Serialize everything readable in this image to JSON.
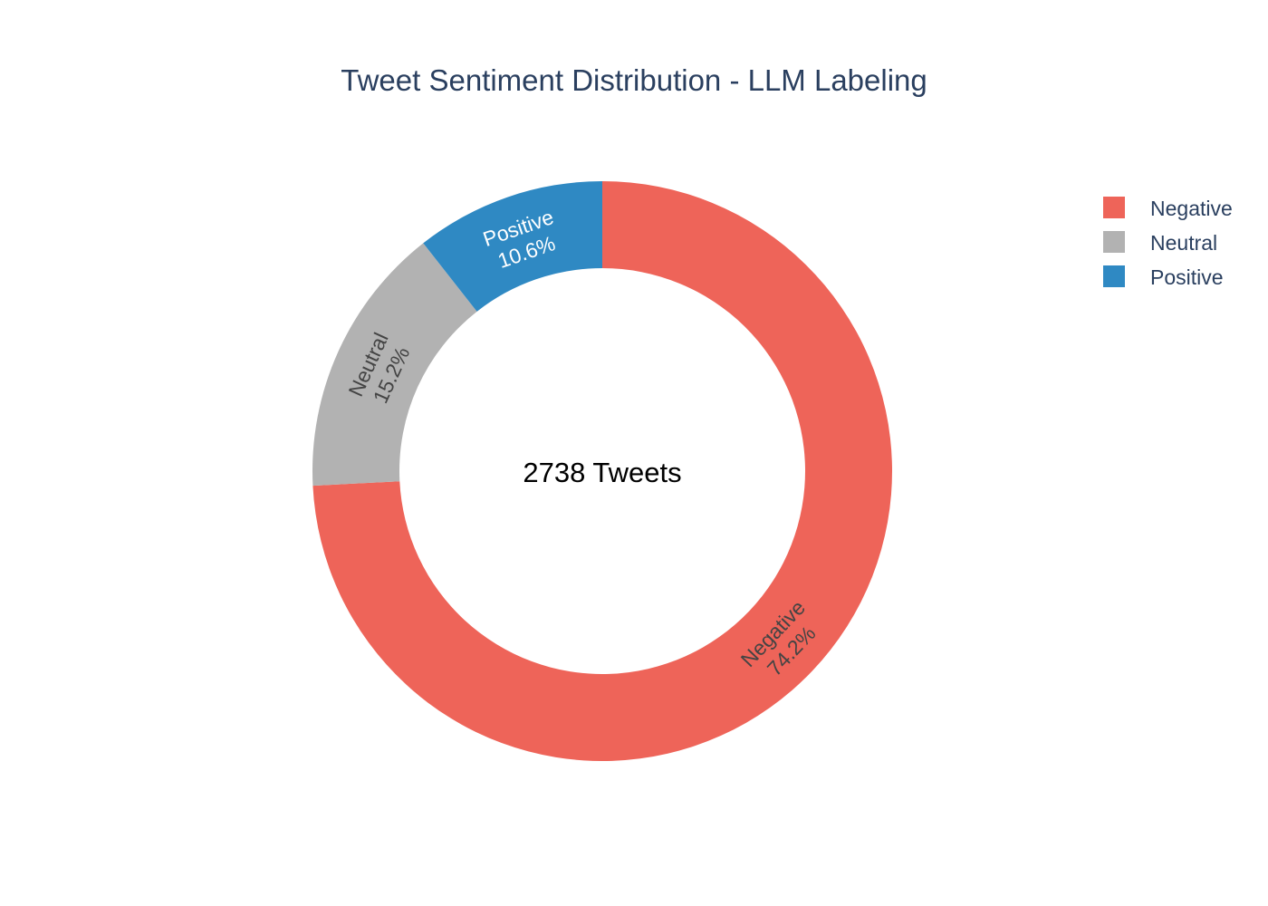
{
  "chart_data": {
    "type": "pie",
    "hole": true,
    "title": "Tweet Sentiment Distribution - LLM Labeling",
    "center_label": "2738 Tweets",
    "total": 2738,
    "legend_position": "top-right",
    "slices": [
      {
        "label": "Negative",
        "percent": 74.2,
        "percent_text": "74.2%",
        "color": "#ee6459",
        "text_color": "#444444"
      },
      {
        "label": "Neutral",
        "percent": 15.2,
        "percent_text": "15.2%",
        "color": "#b2b2b2",
        "text_color": "#444444"
      },
      {
        "label": "Positive",
        "percent": 10.6,
        "percent_text": "10.6%",
        "color": "#2f89c3",
        "text_color": "#ffffff"
      }
    ],
    "legend": [
      {
        "label": "Negative",
        "color": "#ee6459"
      },
      {
        "label": "Neutral",
        "color": "#b2b2b2"
      },
      {
        "label": "Positive",
        "color": "#2f89c3"
      }
    ]
  }
}
